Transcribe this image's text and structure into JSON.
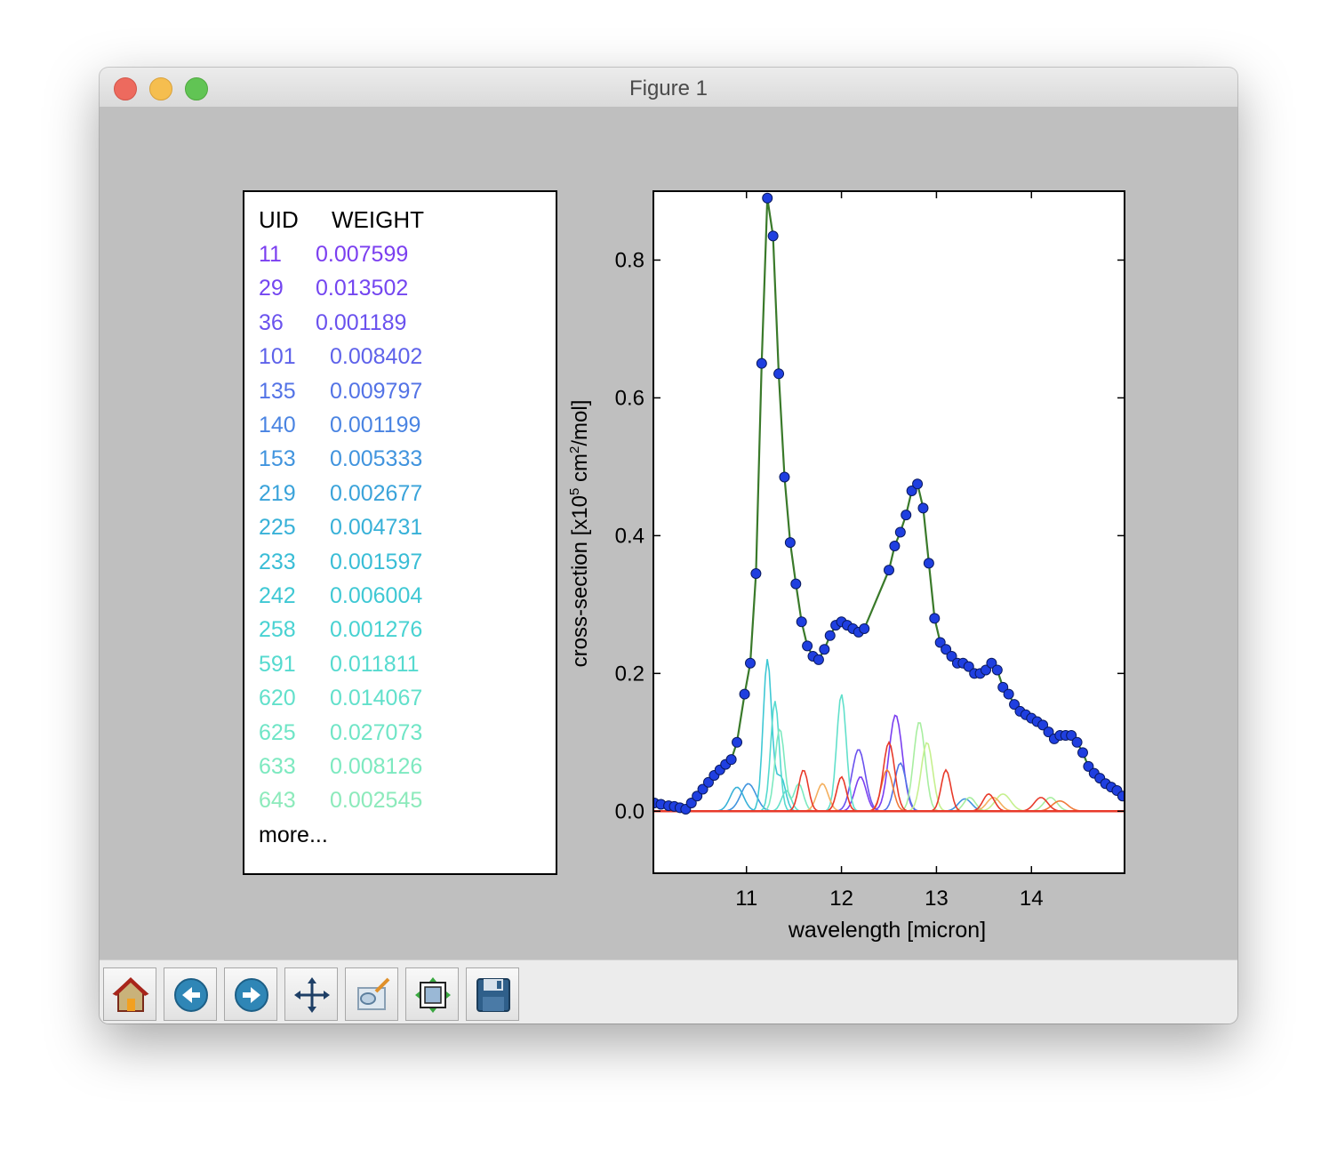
{
  "window": {
    "title": "Figure 1"
  },
  "legend": {
    "header_uid": "UID",
    "header_weight": "WEIGHT",
    "rows": [
      {
        "uid": "11",
        "weight": "0.007599",
        "color": "#7b3ff0"
      },
      {
        "uid": "29",
        "weight": "0.013502",
        "color": "#7446f0"
      },
      {
        "uid": "36",
        "weight": "0.001189",
        "color": "#6a52ee"
      },
      {
        "uid": "101",
        "weight": "0.008402",
        "color": "#5e62ea"
      },
      {
        "uid": "135",
        "weight": "0.009797",
        "color": "#5373e6"
      },
      {
        "uid": "140",
        "weight": "0.001199",
        "color": "#4a84e2"
      },
      {
        "uid": "153",
        "weight": "0.005333",
        "color": "#4194de"
      },
      {
        "uid": "219",
        "weight": "0.002677",
        "color": "#3aa3da"
      },
      {
        "uid": "225",
        "weight": "0.004731",
        "color": "#38b1d8"
      },
      {
        "uid": "233",
        "weight": "0.001597",
        "color": "#39bdd6"
      },
      {
        "uid": "242",
        "weight": "0.006004",
        "color": "#3fc8d4"
      },
      {
        "uid": "258",
        "weight": "0.001276",
        "color": "#48d2d2"
      },
      {
        "uid": "591",
        "weight": "0.011811",
        "color": "#55dacf"
      },
      {
        "uid": "620",
        "weight": "0.014067",
        "color": "#62e0cb"
      },
      {
        "uid": "625",
        "weight": "0.027073",
        "color": "#6fe5c6"
      },
      {
        "uid": "633",
        "weight": "0.008126",
        "color": "#7de9c0"
      },
      {
        "uid": "643",
        "weight": "0.002545",
        "color": "#8ceabb"
      }
    ],
    "more": "more..."
  },
  "chart_data": {
    "type": "line",
    "xlabel": "wavelength [micron]",
    "ylabel_parts": {
      "pre": "cross-section [x10",
      "sup1": "5",
      "mid": " cm",
      "sup2": "2",
      "post": "/mol]"
    },
    "xlim": [
      10.02,
      14.98
    ],
    "ylim": [
      -0.09,
      0.9
    ],
    "xticks": [
      11,
      12,
      13,
      14
    ],
    "yticks": [
      0.0,
      0.2,
      0.4,
      0.6,
      0.8
    ],
    "ytick_labels": [
      "0.0",
      "0.2",
      "0.4",
      "0.6",
      "0.8"
    ],
    "total": {
      "line_color": "#3a7a2a",
      "marker_color": "#1f3fe0",
      "x": [
        10.03,
        10.1,
        10.18,
        10.24,
        10.3,
        10.36,
        10.42,
        10.48,
        10.54,
        10.6,
        10.66,
        10.72,
        10.78,
        10.84,
        10.9,
        10.98,
        11.04,
        11.1,
        11.16,
        11.22,
        11.28,
        11.34,
        11.4,
        11.46,
        11.52,
        11.58,
        11.64,
        11.7,
        11.76,
        11.82,
        11.88,
        11.94,
        12.0,
        12.06,
        12.12,
        12.18,
        12.24,
        12.5,
        12.56,
        12.62,
        12.68,
        12.74,
        12.8,
        12.86,
        12.92,
        12.98,
        13.04,
        13.1,
        13.16,
        13.22,
        13.28,
        13.34,
        13.4,
        13.46,
        13.52,
        13.58,
        13.64,
        13.7,
        13.76,
        13.82,
        13.88,
        13.94,
        14.0,
        14.06,
        14.12,
        14.18,
        14.24,
        14.3,
        14.36,
        14.42,
        14.48,
        14.54,
        14.6,
        14.66,
        14.72,
        14.78,
        14.84,
        14.9,
        14.96
      ],
      "y": [
        0.012,
        0.01,
        0.008,
        0.007,
        0.005,
        0.003,
        0.012,
        0.022,
        0.032,
        0.042,
        0.052,
        0.06,
        0.068,
        0.075,
        0.1,
        0.17,
        0.215,
        0.345,
        0.65,
        0.89,
        0.835,
        0.635,
        0.485,
        0.39,
        0.33,
        0.275,
        0.24,
        0.225,
        0.22,
        0.235,
        0.255,
        0.27,
        0.275,
        0.27,
        0.265,
        0.26,
        0.265,
        0.35,
        0.385,
        0.405,
        0.43,
        0.465,
        0.475,
        0.44,
        0.36,
        0.28,
        0.245,
        0.235,
        0.225,
        0.215,
        0.215,
        0.21,
        0.2,
        0.2,
        0.205,
        0.215,
        0.205,
        0.18,
        0.17,
        0.155,
        0.145,
        0.14,
        0.135,
        0.13,
        0.125,
        0.115,
        0.105,
        0.11,
        0.11,
        0.11,
        0.1,
        0.085,
        0.065,
        0.055,
        0.048,
        0.04,
        0.035,
        0.03,
        0.022
      ]
    },
    "components": [
      {
        "color": "#7b3ff0",
        "peaks": [
          [
            12.57,
            0.14,
            0.07
          ],
          [
            12.2,
            0.05,
            0.06
          ]
        ]
      },
      {
        "color": "#6a52ee",
        "peaks": [
          [
            12.18,
            0.09,
            0.07
          ]
        ]
      },
      {
        "color": "#5373e6",
        "peaks": [
          [
            12.62,
            0.07,
            0.06
          ]
        ]
      },
      {
        "color": "#4194de",
        "peaks": [
          [
            11.02,
            0.04,
            0.08
          ],
          [
            13.3,
            0.018,
            0.07
          ]
        ]
      },
      {
        "color": "#38b1d8",
        "peaks": [
          [
            10.9,
            0.035,
            0.07
          ]
        ]
      },
      {
        "color": "#3fc8d4",
        "peaks": [
          [
            11.22,
            0.22,
            0.045
          ],
          [
            11.36,
            0.05,
            0.05
          ]
        ]
      },
      {
        "color": "#55dacf",
        "peaks": [
          [
            11.3,
            0.16,
            0.045
          ]
        ]
      },
      {
        "color": "#62e0cb",
        "peaks": [
          [
            12.0,
            0.17,
            0.05
          ],
          [
            11.42,
            0.03,
            0.05
          ]
        ]
      },
      {
        "color": "#7de9c0",
        "peaks": [
          [
            11.35,
            0.12,
            0.05
          ],
          [
            11.55,
            0.04,
            0.05
          ]
        ]
      },
      {
        "color": "#a8eea0",
        "peaks": [
          [
            12.82,
            0.13,
            0.06
          ],
          [
            13.35,
            0.02,
            0.06
          ],
          [
            14.2,
            0.02,
            0.07
          ]
        ]
      },
      {
        "color": "#c6f08e",
        "peaks": [
          [
            12.9,
            0.1,
            0.06
          ],
          [
            13.7,
            0.025,
            0.08
          ]
        ]
      },
      {
        "color": "#f4b060",
        "peaks": [
          [
            11.8,
            0.04,
            0.06
          ],
          [
            13.6,
            0.02,
            0.07
          ]
        ]
      },
      {
        "color": "#f07a3a",
        "peaks": [
          [
            12.48,
            0.06,
            0.06
          ],
          [
            14.3,
            0.015,
            0.08
          ]
        ]
      },
      {
        "color": "#e83a2a",
        "peaks": [
          [
            11.6,
            0.06,
            0.05
          ],
          [
            12.0,
            0.05,
            0.05
          ],
          [
            12.5,
            0.1,
            0.06
          ],
          [
            13.1,
            0.06,
            0.05
          ],
          [
            13.55,
            0.025,
            0.06
          ],
          [
            14.1,
            0.02,
            0.07
          ]
        ]
      }
    ]
  },
  "toolbar": {
    "buttons": [
      {
        "name": "home-button",
        "icon": "home-icon"
      },
      {
        "name": "back-button",
        "icon": "back-arrow-icon"
      },
      {
        "name": "forward-button",
        "icon": "forward-arrow-icon"
      },
      {
        "name": "pan-button",
        "icon": "move-icon"
      },
      {
        "name": "zoom-button",
        "icon": "zoom-rect-icon"
      },
      {
        "name": "subplots-button",
        "icon": "subplots-icon"
      },
      {
        "name": "save-button",
        "icon": "floppy-disk-icon"
      }
    ]
  }
}
